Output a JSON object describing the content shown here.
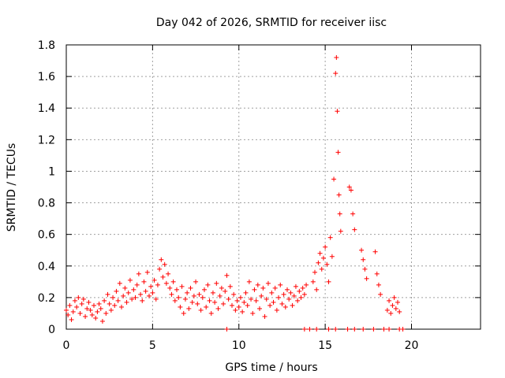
{
  "chart_data": {
    "type": "scatter",
    "title": "Day 042 of 2026, SRMTID for receiver iisc",
    "xlabel": "GPS time / hours",
    "ylabel": "SRMTID / TECUs",
    "xlim": [
      0,
      24
    ],
    "ylim": [
      0,
      1.8
    ],
    "x_ticks": [
      0,
      5,
      10,
      15,
      20
    ],
    "y_ticks": [
      0,
      0.2,
      0.4,
      0.6,
      0.8,
      1,
      1.2,
      1.4,
      1.6,
      1.8
    ],
    "x_tick_labels": [
      "0",
      "5",
      "10",
      "15",
      "20"
    ],
    "y_tick_labels": [
      "0",
      "0.2",
      "0.4",
      "0.6",
      "0.8",
      "1",
      "1.2",
      "1.4",
      "1.6",
      "1.8"
    ],
    "grid": true,
    "marker": "+",
    "marker_color": "#ff0000",
    "series": [
      {
        "name": "SRMTID",
        "points": [
          [
            0.0,
            0.12
          ],
          [
            0.1,
            0.09
          ],
          [
            0.2,
            0.15
          ],
          [
            0.3,
            0.06
          ],
          [
            0.4,
            0.11
          ],
          [
            0.5,
            0.18
          ],
          [
            0.6,
            0.14
          ],
          [
            0.7,
            0.2
          ],
          [
            0.8,
            0.1
          ],
          [
            0.9,
            0.16
          ],
          [
            1.0,
            0.19
          ],
          [
            1.1,
            0.08
          ],
          [
            1.2,
            0.13
          ],
          [
            1.3,
            0.17
          ],
          [
            1.4,
            0.12
          ],
          [
            1.5,
            0.09
          ],
          [
            1.6,
            0.15
          ],
          [
            1.7,
            0.07
          ],
          [
            1.8,
            0.11
          ],
          [
            1.9,
            0.16
          ],
          [
            2.0,
            0.13
          ],
          [
            2.1,
            0.05
          ],
          [
            2.2,
            0.18
          ],
          [
            2.3,
            0.1
          ],
          [
            2.4,
            0.22
          ],
          [
            2.5,
            0.16
          ],
          [
            2.6,
            0.12
          ],
          [
            2.7,
            0.2
          ],
          [
            2.8,
            0.15
          ],
          [
            2.9,
            0.24
          ],
          [
            3.0,
            0.18
          ],
          [
            3.1,
            0.29
          ],
          [
            3.2,
            0.14
          ],
          [
            3.3,
            0.21
          ],
          [
            3.4,
            0.26
          ],
          [
            3.5,
            0.17
          ],
          [
            3.6,
            0.23
          ],
          [
            3.7,
            0.31
          ],
          [
            3.8,
            0.19
          ],
          [
            3.9,
            0.25
          ],
          [
            4.0,
            0.2
          ],
          [
            4.1,
            0.28
          ],
          [
            4.2,
            0.35
          ],
          [
            4.3,
            0.22
          ],
          [
            4.4,
            0.18
          ],
          [
            4.5,
            0.3
          ],
          [
            4.6,
            0.24
          ],
          [
            4.7,
            0.36
          ],
          [
            4.8,
            0.21
          ],
          [
            4.9,
            0.27
          ],
          [
            5.0,
            0.23
          ],
          [
            5.1,
            0.31
          ],
          [
            5.2,
            0.19
          ],
          [
            5.3,
            0.28
          ],
          [
            5.4,
            0.38
          ],
          [
            5.5,
            0.44
          ],
          [
            5.6,
            0.33
          ],
          [
            5.7,
            0.41
          ],
          [
            5.8,
            0.29
          ],
          [
            5.9,
            0.35
          ],
          [
            6.0,
            0.26
          ],
          [
            6.1,
            0.22
          ],
          [
            6.2,
            0.3
          ],
          [
            6.3,
            0.18
          ],
          [
            6.4,
            0.25
          ],
          [
            6.5,
            0.2
          ],
          [
            6.6,
            0.14
          ],
          [
            6.7,
            0.27
          ],
          [
            6.8,
            0.1
          ],
          [
            6.9,
            0.19
          ],
          [
            7.0,
            0.23
          ],
          [
            7.1,
            0.13
          ],
          [
            7.2,
            0.26
          ],
          [
            7.3,
            0.17
          ],
          [
            7.4,
            0.21
          ],
          [
            7.5,
            0.3
          ],
          [
            7.6,
            0.16
          ],
          [
            7.7,
            0.22
          ],
          [
            7.8,
            0.12
          ],
          [
            7.9,
            0.2
          ],
          [
            8.0,
            0.25
          ],
          [
            8.1,
            0.14
          ],
          [
            8.2,
            0.28
          ],
          [
            8.3,
            0.18
          ],
          [
            8.4,
            0.1
          ],
          [
            8.5,
            0.23
          ],
          [
            8.6,
            0.17
          ],
          [
            8.7,
            0.29
          ],
          [
            8.8,
            0.13
          ],
          [
            8.9,
            0.21
          ],
          [
            9.0,
            0.26
          ],
          [
            9.1,
            0.16
          ],
          [
            9.2,
            0.24
          ],
          [
            9.3,
            0.34
          ],
          [
            9.4,
            0.19
          ],
          [
            9.5,
            0.27
          ],
          [
            9.6,
            0.15
          ],
          [
            9.7,
            0.22
          ],
          [
            9.8,
            0.12
          ],
          [
            9.9,
            0.18
          ],
          [
            10.0,
            0.14
          ],
          [
            10.1,
            0.2
          ],
          [
            10.2,
            0.11
          ],
          [
            10.3,
            0.17
          ],
          [
            10.4,
            0.23
          ],
          [
            10.5,
            0.15
          ],
          [
            10.6,
            0.3
          ],
          [
            10.7,
            0.19
          ],
          [
            10.8,
            0.1
          ],
          [
            10.9,
            0.25
          ],
          [
            11.0,
            0.18
          ],
          [
            11.1,
            0.28
          ],
          [
            11.2,
            0.13
          ],
          [
            11.3,
            0.21
          ],
          [
            11.4,
            0.26
          ],
          [
            11.5,
            0.08
          ],
          [
            11.6,
            0.19
          ],
          [
            11.7,
            0.29
          ],
          [
            11.8,
            0.15
          ],
          [
            11.9,
            0.23
          ],
          [
            12.0,
            0.17
          ],
          [
            12.1,
            0.26
          ],
          [
            12.2,
            0.12
          ],
          [
            12.3,
            0.2
          ],
          [
            12.4,
            0.28
          ],
          [
            12.5,
            0.16
          ],
          [
            12.6,
            0.22
          ],
          [
            12.7,
            0.14
          ],
          [
            12.8,
            0.25
          ],
          [
            12.9,
            0.19
          ],
          [
            13.0,
            0.23
          ],
          [
            13.1,
            0.15
          ],
          [
            13.2,
            0.21
          ],
          [
            13.3,
            0.27
          ],
          [
            13.4,
            0.18
          ],
          [
            13.5,
            0.24
          ],
          [
            13.6,
            0.2
          ],
          [
            13.7,
            0.26
          ],
          [
            13.8,
            0.22
          ],
          [
            13.9,
            0.28
          ],
          [
            14.3,
            0.3
          ],
          [
            14.4,
            0.36
          ],
          [
            14.5,
            0.25
          ],
          [
            14.6,
            0.42
          ],
          [
            14.7,
            0.48
          ],
          [
            14.8,
            0.38
          ],
          [
            14.9,
            0.45
          ],
          [
            15.0,
            0.52
          ],
          [
            15.1,
            0.41
          ],
          [
            15.2,
            0.3
          ],
          [
            15.3,
            0.58
          ],
          [
            15.4,
            0.46
          ],
          [
            15.5,
            0.95
          ],
          [
            15.6,
            1.62
          ],
          [
            15.65,
            1.72
          ],
          [
            15.7,
            1.38
          ],
          [
            15.75,
            1.12
          ],
          [
            15.8,
            0.85
          ],
          [
            15.85,
            0.73
          ],
          [
            15.9,
            0.62
          ],
          [
            16.4,
            0.9
          ],
          [
            16.5,
            0.88
          ],
          [
            16.6,
            0.73
          ],
          [
            16.7,
            0.63
          ],
          [
            17.1,
            0.5
          ],
          [
            17.2,
            0.44
          ],
          [
            17.3,
            0.38
          ],
          [
            17.4,
            0.32
          ],
          [
            17.9,
            0.49
          ],
          [
            18.0,
            0.35
          ],
          [
            18.1,
            0.28
          ],
          [
            18.2,
            0.22
          ],
          [
            18.6,
            0.12
          ],
          [
            18.7,
            0.18
          ],
          [
            18.8,
            0.1
          ],
          [
            18.9,
            0.15
          ],
          [
            19.0,
            0.2
          ],
          [
            19.1,
            0.13
          ],
          [
            19.2,
            0.17
          ],
          [
            19.3,
            0.11
          ],
          [
            9.3,
            0.0
          ],
          [
            13.8,
            0.0
          ],
          [
            14.1,
            0.0
          ],
          [
            14.5,
            0.0
          ],
          [
            15.2,
            0.0
          ],
          [
            15.6,
            0.0
          ],
          [
            16.3,
            0.0
          ],
          [
            16.7,
            0.0
          ],
          [
            17.2,
            0.0
          ],
          [
            17.8,
            0.0
          ],
          [
            18.4,
            0.0
          ],
          [
            18.7,
            0.0
          ],
          [
            19.3,
            0.0
          ],
          [
            19.5,
            0.0
          ]
        ]
      }
    ]
  }
}
